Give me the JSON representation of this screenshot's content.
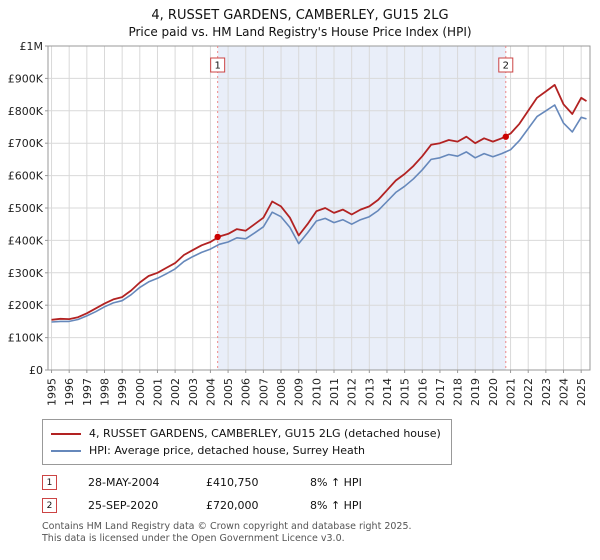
{
  "title": "4, RUSSET GARDENS, CAMBERLEY, GU15 2LG",
  "subtitle": "Price paid vs. HM Land Registry's House Price Index (HPI)",
  "colors": {
    "property_line": "#b22222",
    "hpi_line": "#6688bb",
    "grid": "#d9d9d9",
    "plot_border": "#999999",
    "marker_line": "#ee8888",
    "marker_box_border": "#cc4444",
    "dot": "#cc0000",
    "shaded_band": "#e9eef9"
  },
  "chart_data": {
    "type": "line",
    "title": "4, RUSSET GARDENS, CAMBERLEY, GU15 2LG",
    "subtitle": "Price paid vs. HM Land Registry's House Price Index (HPI)",
    "xlabel": "",
    "ylabel": "",
    "xlim": [
      1994.8,
      2025.5
    ],
    "ylim": [
      0,
      1000000
    ],
    "grid": true,
    "legend_position": "bottom",
    "x_ticks": [
      1995,
      1996,
      1997,
      1998,
      1999,
      2000,
      2001,
      2002,
      2003,
      2004,
      2005,
      2006,
      2007,
      2008,
      2009,
      2010,
      2011,
      2012,
      2013,
      2014,
      2015,
      2016,
      2017,
      2018,
      2019,
      2020,
      2021,
      2022,
      2023,
      2024,
      2025
    ],
    "y_ticks": [
      {
        "v": 0,
        "label": "£0"
      },
      {
        "v": 100000,
        "label": "£100K"
      },
      {
        "v": 200000,
        "label": "£200K"
      },
      {
        "v": 300000,
        "label": "£300K"
      },
      {
        "v": 400000,
        "label": "£400K"
      },
      {
        "v": 500000,
        "label": "£500K"
      },
      {
        "v": 600000,
        "label": "£600K"
      },
      {
        "v": 700000,
        "label": "£700K"
      },
      {
        "v": 800000,
        "label": "£800K"
      },
      {
        "v": 900000,
        "label": "£900K"
      },
      {
        "v": 1000000,
        "label": "£1M"
      }
    ],
    "shaded_region": {
      "from": 2004.41,
      "to": 2020.73
    },
    "markers": [
      {
        "n": "1",
        "x": 2004.41,
        "y": 410750,
        "date": "28-MAY-2004"
      },
      {
        "n": "2",
        "x": 2020.73,
        "y": 720000,
        "date": "25-SEP-2020"
      }
    ],
    "x": [
      1995,
      1995.5,
      1996,
      1996.5,
      1997,
      1997.5,
      1998,
      1998.5,
      1999,
      1999.5,
      2000,
      2000.5,
      2001,
      2001.5,
      2002,
      2002.5,
      2003,
      2003.5,
      2004,
      2004.5,
      2005,
      2005.5,
      2006,
      2006.5,
      2007,
      2007.5,
      2008,
      2008.5,
      2009,
      2009.5,
      2010,
      2010.5,
      2011,
      2011.5,
      2012,
      2012.5,
      2013,
      2013.5,
      2014,
      2014.5,
      2015,
      2015.5,
      2016,
      2016.5,
      2017,
      2017.5,
      2018,
      2018.5,
      2019,
      2019.5,
      2020,
      2020.5,
      2021,
      2021.5,
      2022,
      2022.5,
      2023,
      2023.5,
      2024,
      2024.5,
      2025,
      2025.3
    ],
    "series": [
      {
        "name": "4, RUSSET GARDENS, CAMBERLEY, GU15 2LG (detached house)",
        "color": "#b22222",
        "width": 1.8,
        "values": [
          155000,
          158000,
          157000,
          163000,
          175000,
          190000,
          205000,
          218000,
          225000,
          245000,
          270000,
          290000,
          300000,
          315000,
          330000,
          355000,
          370000,
          385000,
          395000,
          412000,
          420000,
          435000,
          430000,
          450000,
          470000,
          520000,
          505000,
          470000,
          415000,
          450000,
          490000,
          500000,
          485000,
          495000,
          480000,
          495000,
          505000,
          525000,
          555000,
          585000,
          605000,
          630000,
          660000,
          695000,
          700000,
          710000,
          705000,
          720000,
          700000,
          715000,
          705000,
          715000,
          730000,
          760000,
          800000,
          840000,
          860000,
          880000,
          820000,
          790000,
          840000,
          830000
        ]
      },
      {
        "name": "HPI: Average price, detached house, Surrey Heath",
        "color": "#6688bb",
        "width": 1.6,
        "values": [
          148000,
          150000,
          150000,
          156000,
          167000,
          180000,
          195000,
          207000,
          214000,
          232000,
          255000,
          272000,
          283000,
          297000,
          312000,
          335000,
          350000,
          363000,
          373000,
          388000,
          395000,
          408000,
          405000,
          423000,
          442000,
          487000,
          473000,
          440000,
          390000,
          423000,
          460000,
          468000,
          455000,
          464000,
          450000,
          464000,
          473000,
          492000,
          520000,
          548000,
          567000,
          590000,
          618000,
          650000,
          655000,
          665000,
          660000,
          673000,
          655000,
          668000,
          658000,
          668000,
          680000,
          708000,
          745000,
          782000,
          800000,
          818000,
          762000,
          735000,
          780000,
          775000
        ]
      }
    ]
  },
  "transactions": [
    {
      "num": "1",
      "date": "28-MAY-2004",
      "price": "£410,750",
      "hpi": "8% ↑ HPI"
    },
    {
      "num": "2",
      "date": "25-SEP-2020",
      "price": "£720,000",
      "hpi": "8% ↑ HPI"
    }
  ],
  "footer": {
    "line1": "Contains HM Land Registry data © Crown copyright and database right 2025.",
    "line2": "This data is licensed under the Open Government Licence v3.0."
  }
}
